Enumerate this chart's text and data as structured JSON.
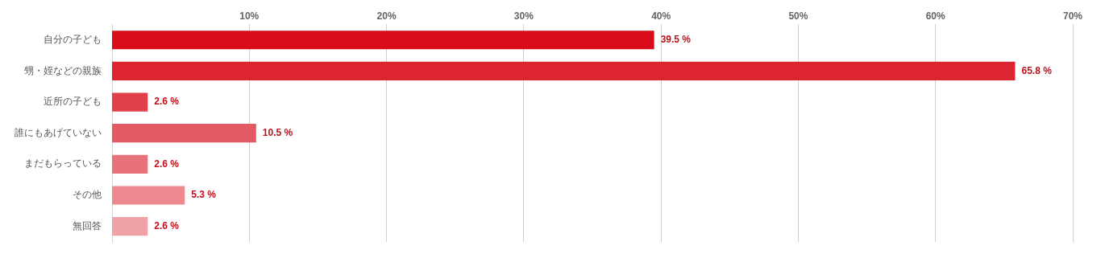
{
  "chart_data": {
    "type": "bar",
    "orientation": "horizontal",
    "categories": [
      "自分の子ども",
      "甥・姪などの親族",
      "近所の子ども",
      "誰にもあげていない",
      "まだもらっている",
      "その他",
      "無回答"
    ],
    "values": [
      39.5,
      65.8,
      2.6,
      10.5,
      2.6,
      5.3,
      2.6
    ],
    "colors": [
      "#d80c18",
      "#dc2530",
      "#e0404a",
      "#e45a62",
      "#e8727a",
      "#ec8a90",
      "#f0a2a6"
    ],
    "value_labels": [
      "39.5 %",
      "65.8 %",
      "2.6 %",
      "10.5 %",
      "2.6 %",
      "5.3 %",
      "2.6 %"
    ],
    "xlim": [
      0,
      70
    ],
    "xticks": [
      {
        "value": 0,
        "label": null
      },
      {
        "value": 10,
        "label": "10%"
      },
      {
        "value": 20,
        "label": "20%"
      },
      {
        "value": 30,
        "label": "30%"
      },
      {
        "value": 40,
        "label": "40%"
      },
      {
        "value": 50,
        "label": "50%"
      },
      {
        "value": 60,
        "label": "60%"
      },
      {
        "value": 70,
        "label": "70%"
      }
    ],
    "grid": "x",
    "legend": false
  }
}
